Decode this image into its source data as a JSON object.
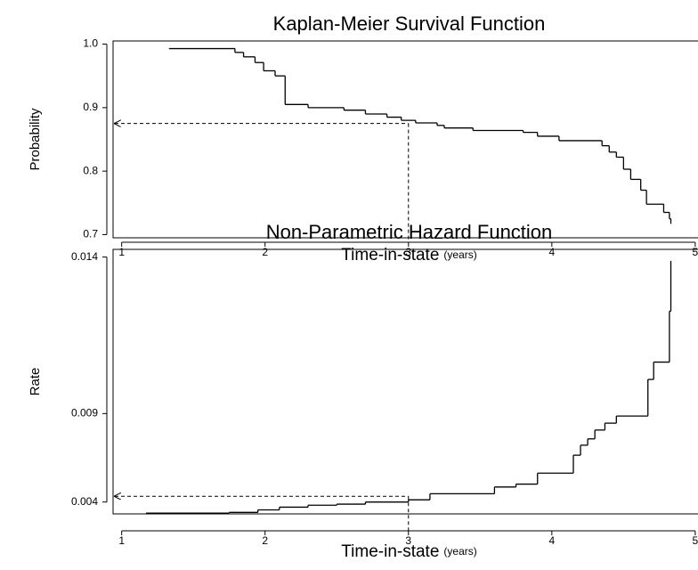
{
  "chart_data": [
    {
      "type": "step",
      "title": "Kaplan-Meier Survival Function",
      "xlabel": "Time-in-state",
      "xlabel_unit": "(years)",
      "ylabel": "Probability",
      "x": [
        1.33,
        1.79,
        1.85,
        1.93,
        1.99,
        2.07,
        2.14,
        2.3,
        2.55,
        2.7,
        2.85,
        2.95,
        3.05,
        3.2,
        3.25,
        3.45,
        3.8,
        3.9,
        4.05,
        4.35,
        4.4,
        4.45,
        4.5,
        4.55,
        4.62,
        4.66,
        4.78,
        4.82,
        4.83
      ],
      "values": [
        0.993,
        0.987,
        0.98,
        0.971,
        0.958,
        0.95,
        0.905,
        0.9,
        0.896,
        0.89,
        0.885,
        0.88,
        0.876,
        0.872,
        0.868,
        0.864,
        0.861,
        0.855,
        0.848,
        0.84,
        0.83,
        0.822,
        0.803,
        0.787,
        0.77,
        0.748,
        0.735,
        0.725,
        0.717
      ],
      "color": "#000000",
      "xlim": [
        0.94,
        5.1
      ],
      "xticks": [
        1,
        2,
        3,
        4,
        5
      ],
      "ylim": [
        0.695,
        1.005
      ],
      "yticks": [
        0.7,
        0.8,
        0.9,
        {
          "value": 1,
          "label": "1.0"
        }
      ],
      "yscale": "linear",
      "guide": {
        "x": 3,
        "y": 0.875
      }
    },
    {
      "type": "step",
      "title": "Non-Parametric Hazard Function",
      "xlabel": "Time-in-state",
      "xlabel_unit": "(years)",
      "ylabel": "Rate",
      "x": [
        1.17,
        1.75,
        1.95,
        2.1,
        2.3,
        2.5,
        2.7,
        3.0,
        3.15,
        3.6,
        3.75,
        3.9,
        4.15,
        4.2,
        4.25,
        4.3,
        4.37,
        4.45,
        4.67,
        4.71,
        4.82,
        4.83
      ],
      "values": [
        0.0028,
        0.0029,
        0.0032,
        0.0035,
        0.0037,
        0.0038,
        0.004,
        0.0042,
        0.0047,
        0.0052,
        0.0054,
        0.0061,
        0.0071,
        0.0076,
        0.0079,
        0.0083,
        0.0086,
        0.0089,
        0.0103,
        0.0109,
        0.0125,
        0.0139
      ],
      "color": "#000000",
      "xlim": [
        0.94,
        5.1
      ],
      "xticks": [
        1,
        2,
        3,
        4,
        5
      ],
      "ylim": [
        0.0027,
        0.0142
      ],
      "yticks": [
        0.004,
        0.009,
        0.014
      ],
      "yscale": "square",
      "guide": {
        "x": 3,
        "y": 0.0045
      }
    }
  ]
}
